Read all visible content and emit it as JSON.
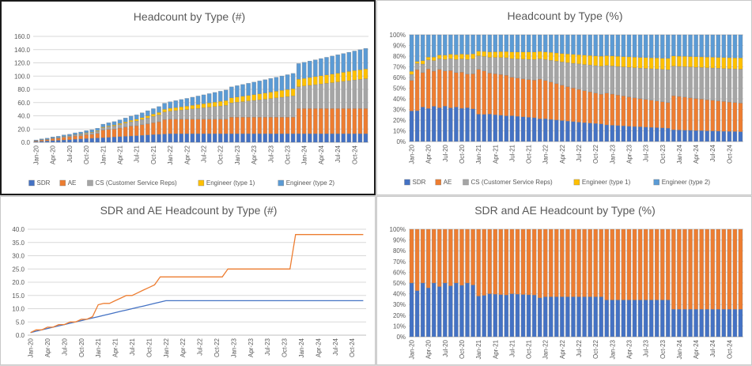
{
  "colors": {
    "sdr": "#4472c4",
    "ae": "#ed7d31",
    "cs": "#a5a5a5",
    "eng1": "#ffc000",
    "eng2": "#5b9bd5"
  },
  "x_tick_labels": [
    "Jan-20",
    "Apr-20",
    "Jul-20",
    "Oct-20",
    "Jan-21",
    "Apr-21",
    "Jul-21",
    "Oct-21",
    "Jan-22",
    "Apr-22",
    "Jul-22",
    "Oct-22",
    "Jan-23",
    "Apr-23",
    "Jul-23",
    "Oct-23",
    "Jan-24",
    "Apr-24",
    "Jul-24",
    "Oct-24"
  ],
  "chart_data": [
    {
      "type": "bar",
      "stacked": true,
      "title": "Headcount by Type (#)",
      "x_range": [
        "Jan-20",
        "Dec-24"
      ],
      "ylim": [
        0,
        160
      ],
      "y_ticks": [
        "0.0",
        "20.0",
        "40.0",
        "60.0",
        "80.0",
        "100.0",
        "120.0",
        "140.0",
        "160.0"
      ],
      "legend_position": "bottom",
      "series": [
        {
          "name": "SDR",
          "color": "sdr",
          "values": [
            1.0,
            1.5,
            2.0,
            2.5,
            3.0,
            3.5,
            4.0,
            4.5,
            5.0,
            5.5,
            6.0,
            6.5,
            7.0,
            7.5,
            8.0,
            8.5,
            9.0,
            9.5,
            10.0,
            10.5,
            11.0,
            11.5,
            12.0,
            12.5,
            13.0,
            13.0,
            13.0,
            13.0,
            13.0,
            13.0,
            13.0,
            13.0,
            13.0,
            13.0,
            13.0,
            13.0,
            13.0,
            13.0,
            13.0,
            13.0,
            13.0,
            13.0,
            13.0,
            13.0,
            13.0,
            13.0,
            13.0,
            13.0,
            13.0,
            13.0,
            13.0,
            13.0,
            13.0,
            13.0,
            13.0,
            13.0,
            13.0,
            13.0,
            13.0,
            13.0
          ]
        },
        {
          "name": "AE",
          "color": "ae",
          "values": [
            1.0,
            2.0,
            2.0,
            3.0,
            3.0,
            4.0,
            4.0,
            5.0,
            5.0,
            6.0,
            6.0,
            7.0,
            11.5,
            12.0,
            12.0,
            13.0,
            14.0,
            15.0,
            15.0,
            16.0,
            17.0,
            18.0,
            19.0,
            22.0,
            22.0,
            22.0,
            22.0,
            22.0,
            22.0,
            22.0,
            22.0,
            22.0,
            22.0,
            22.0,
            22.0,
            25.0,
            25.0,
            25.0,
            25.0,
            25.0,
            25.0,
            25.0,
            25.0,
            25.0,
            25.0,
            25.0,
            25.0,
            38.0,
            38.0,
            38.0,
            38.0,
            38.0,
            38.0,
            38.0,
            38.0,
            38.0,
            38.0,
            38.0,
            38.0,
            38.0
          ]
        },
        {
          "name": "CS (Customer Service Reps)",
          "color": "cs",
          "values": [
            0.2,
            0.3,
            0.5,
            0.7,
            0.9,
            1.1,
            1.3,
            1.6,
            1.9,
            2.2,
            2.6,
            3.0,
            3.5,
            4.0,
            4.6,
            5.2,
            5.8,
            6.5,
            7.2,
            8.0,
            8.8,
            9.6,
            10.4,
            11.2,
            12.0,
            12.8,
            13.6,
            14.4,
            15.3,
            16.2,
            17.1,
            18.0,
            18.9,
            19.8,
            20.7,
            21.6,
            22.5,
            23.4,
            24.3,
            25.2,
            26.1,
            27.0,
            28.0,
            29.0,
            30.0,
            31.0,
            32.0,
            33.0,
            34.0,
            35.0,
            36.0,
            37.0,
            38.0,
            39.0,
            40.0,
            41.0,
            42.0,
            43.0,
            44.0,
            45.0
          ]
        },
        {
          "name": "Engineer (type 1)",
          "color": "eng1",
          "values": [
            0.1,
            0.1,
            0.2,
            0.2,
            0.3,
            0.4,
            0.5,
            0.6,
            0.7,
            0.8,
            0.9,
            1.0,
            1.2,
            1.4,
            1.6,
            1.8,
            2.0,
            2.3,
            2.6,
            2.9,
            3.2,
            3.5,
            3.8,
            4.1,
            4.4,
            4.7,
            5.0,
            5.3,
            5.6,
            5.9,
            6.2,
            6.5,
            6.8,
            7.1,
            7.4,
            7.7,
            8.0,
            8.3,
            8.6,
            8.9,
            9.2,
            9.5,
            9.8,
            10.1,
            10.4,
            10.7,
            11.0,
            11.3,
            11.6,
            11.9,
            12.2,
            12.5,
            12.8,
            13.1,
            13.4,
            13.7,
            14.0,
            14.3,
            14.6,
            14.9
          ]
        },
        {
          "name": "Engineer (type 2)",
          "color": "eng2",
          "values": [
            1.2,
            1.3,
            1.5,
            1.7,
            1.9,
            2.1,
            2.3,
            2.6,
            2.9,
            3.2,
            3.5,
            3.8,
            4.2,
            4.6,
            5.0,
            5.4,
            5.8,
            6.2,
            6.7,
            7.2,
            7.7,
            8.2,
            8.7,
            9.2,
            9.8,
            10.4,
            11.0,
            11.6,
            12.2,
            12.8,
            13.4,
            14.0,
            14.6,
            15.2,
            15.8,
            16.4,
            17.0,
            17.6,
            18.2,
            18.8,
            19.4,
            20.0,
            20.6,
            21.2,
            21.8,
            22.4,
            23.0,
            23.6,
            24.2,
            24.8,
            25.4,
            26.0,
            26.6,
            27.2,
            27.8,
            28.4,
            29.0,
            29.6,
            30.2,
            30.8
          ]
        }
      ]
    },
    {
      "type": "bar",
      "stacked": true,
      "percent": true,
      "title": "Headcount by Type (%)",
      "x_range": [
        "Jan-20",
        "Dec-24"
      ],
      "ylim": [
        0,
        100
      ],
      "y_ticks": [
        "0%",
        "10%",
        "20%",
        "30%",
        "40%",
        "50%",
        "60%",
        "70%",
        "80%",
        "90%",
        "100%"
      ],
      "legend_position": "bottom",
      "series_from": "Headcount by Type (#)"
    },
    {
      "type": "line",
      "title": "SDR and AE Headcount by Type (#)",
      "x_range": [
        "Jan-20",
        "Dec-24"
      ],
      "ylim": [
        0,
        40
      ],
      "y_ticks": [
        "0.0",
        "5.0",
        "10.0",
        "15.0",
        "20.0",
        "25.0",
        "30.0",
        "35.0",
        "40.0"
      ],
      "series_from": "Headcount by Type (#)",
      "series_names": [
        "SDR",
        "AE"
      ]
    },
    {
      "type": "bar",
      "stacked": true,
      "percent": true,
      "title": "SDR and AE Headcount by Type (%)",
      "x_range": [
        "Jan-20",
        "Dec-24"
      ],
      "ylim": [
        0,
        100
      ],
      "y_ticks": [
        "0%",
        "10%",
        "20%",
        "30%",
        "40%",
        "50%",
        "60%",
        "70%",
        "80%",
        "90%",
        "100%"
      ],
      "series_from": "Headcount by Type (#)",
      "series_names": [
        "SDR",
        "AE"
      ]
    }
  ]
}
